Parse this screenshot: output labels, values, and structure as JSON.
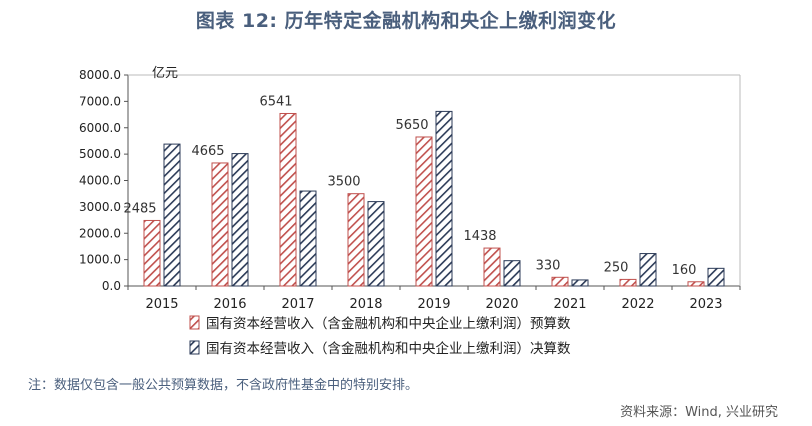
{
  "title": "图表 12: 历年特定金融机构和央企上缴利润变化",
  "note": "注：数据仅包含一般公共预算数据，不含政府性基金中的特别安排。",
  "source": "资料来源：Wind, 兴业研究",
  "colors": {
    "budget": "#c0504d",
    "final": "#2b3a57",
    "grid": "#d0d0d0",
    "text_accent": "#4a5f7d"
  },
  "chart_data": {
    "type": "bar",
    "unit_label": "亿元",
    "categories": [
      "2015",
      "2016",
      "2017",
      "2018",
      "2019",
      "2020",
      "2021",
      "2022",
      "2023"
    ],
    "y_ticks": [
      "0.0",
      "1000.0",
      "2000.0",
      "3000.0",
      "4000.0",
      "5000.0",
      "6000.0",
      "7000.0",
      "8000.0"
    ],
    "ylim": [
      0,
      8000
    ],
    "grid": false,
    "legend_position": "bottom",
    "series": [
      {
        "name": "国有资本经营收入（含金融机构和中央企业上缴利润）预算数",
        "values": [
          2485,
          4665,
          6541,
          3500,
          5650,
          1438,
          330,
          250,
          160
        ],
        "labels": [
          "2485",
          "4665",
          "6541",
          "3500",
          "5650",
          "1438",
          "330",
          "250",
          "160"
        ],
        "color": "#c0504d",
        "pattern": "diagonal-hatch"
      },
      {
        "name": "国有资本经营收入（含金融机构和中央企业上缴利润）决算数",
        "values": [
          5380,
          5020,
          3600,
          3200,
          6620,
          960,
          230,
          1230,
          670
        ],
        "color": "#2b3a57",
        "pattern": "diagonal-hatch"
      }
    ]
  }
}
